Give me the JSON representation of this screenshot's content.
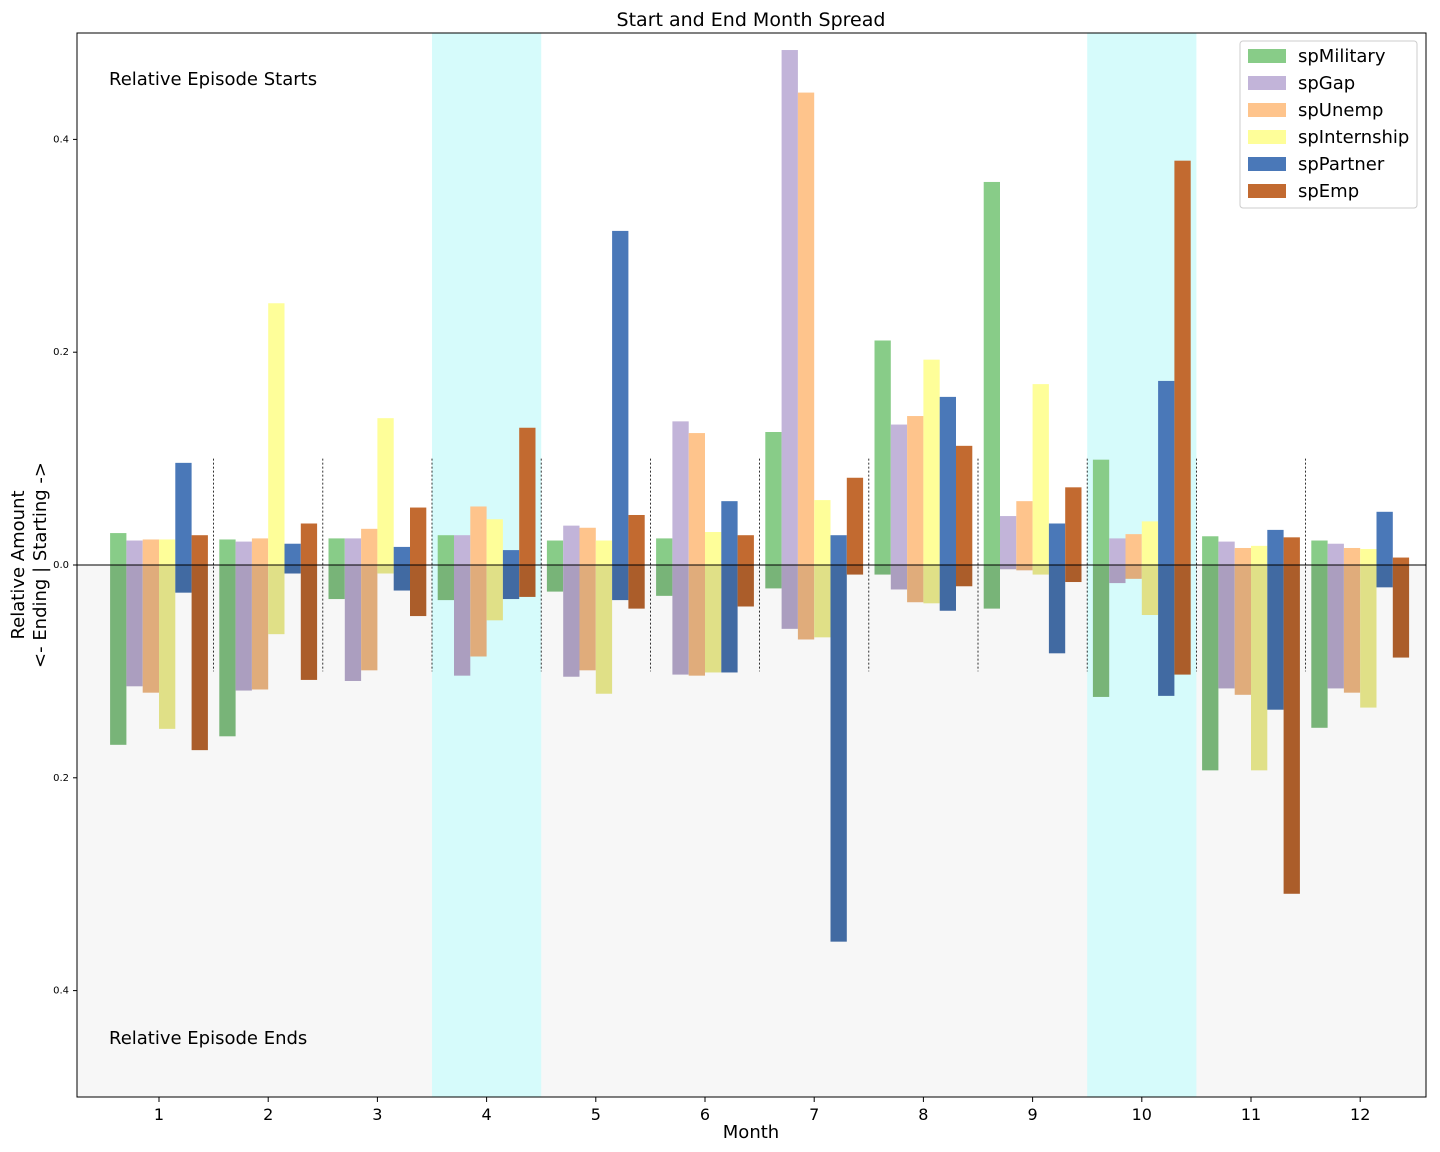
{
  "chart_data": {
    "type": "bar",
    "title": "Start and End Month Spread",
    "xlabel": "Month",
    "ylabel_line1": "Relative Amount",
    "ylabel_line2": "<- Ending | Starting ->",
    "annotation_top": "Relative Episode Starts",
    "annotation_bottom": "Relative Episode Ends",
    "categories": [
      "1",
      "2",
      "3",
      "4",
      "5",
      "6",
      "7",
      "8",
      "9",
      "10",
      "11",
      "12"
    ],
    "ylim": [
      -0.5,
      0.5
    ],
    "yticks": [
      -0.4,
      -0.2,
      0.0,
      0.2,
      0.4
    ],
    "ytick_labels": [
      "0.4",
      "0.2",
      "0.0",
      "0.2",
      "0.4"
    ],
    "highlight_months": [
      "4",
      "10"
    ],
    "highlight_color": "#d4fbfb",
    "negative_region_color": "#f7f7f7",
    "legend_position": "top-right",
    "series": [
      {
        "name": "spMilitary",
        "color": "#88cc88",
        "start": [
          0.03,
          0.024,
          0.025,
          0.028,
          0.023,
          0.025,
          0.125,
          0.211,
          0.36,
          0.099,
          0.027,
          0.023
        ],
        "end": [
          0.169,
          0.161,
          0.032,
          0.033,
          0.025,
          0.029,
          0.022,
          0.009,
          0.041,
          0.124,
          0.193,
          0.153
        ]
      },
      {
        "name": "spGap",
        "color": "#c2b4d9",
        "start": [
          0.023,
          0.022,
          0.025,
          0.028,
          0.037,
          0.135,
          0.484,
          0.132,
          0.046,
          0.025,
          0.022,
          0.02
        ],
        "end": [
          0.114,
          0.118,
          0.109,
          0.104,
          0.105,
          0.103,
          0.06,
          0.023,
          0.004,
          0.017,
          0.116,
          0.116
        ]
      },
      {
        "name": "spUnemp",
        "color": "#fec48c",
        "start": [
          0.024,
          0.025,
          0.034,
          0.055,
          0.035,
          0.124,
          0.444,
          0.14,
          0.06,
          0.029,
          0.016,
          0.016
        ],
        "end": [
          0.12,
          0.117,
          0.099,
          0.086,
          0.099,
          0.104,
          0.07,
          0.035,
          0.005,
          0.013,
          0.122,
          0.12
        ]
      },
      {
        "name": "spInternship",
        "color": "#fefe99",
        "start": [
          0.024,
          0.246,
          0.138,
          0.043,
          0.023,
          0.031,
          0.061,
          0.193,
          0.17,
          0.041,
          0.018,
          0.015
        ],
        "end": [
          0.154,
          0.065,
          0.008,
          0.052,
          0.121,
          0.101,
          0.068,
          0.036,
          0.009,
          0.047,
          0.193,
          0.134
        ]
      },
      {
        "name": "spPartner",
        "color": "#4a78b8",
        "start": [
          0.096,
          0.02,
          0.017,
          0.014,
          0.314,
          0.06,
          0.028,
          0.158,
          0.039,
          0.173,
          0.033,
          0.05
        ],
        "end": [
          0.026,
          0.008,
          0.024,
          0.032,
          0.033,
          0.101,
          0.354,
          0.043,
          0.083,
          0.123,
          0.136,
          0.021
        ]
      },
      {
        "name": "spEmp",
        "color": "#c26a30",
        "start": [
          0.028,
          0.039,
          0.054,
          0.129,
          0.047,
          0.028,
          0.082,
          0.112,
          0.073,
          0.38,
          0.026,
          0.007
        ],
        "end": [
          0.174,
          0.108,
          0.048,
          0.03,
          0.041,
          0.039,
          0.009,
          0.02,
          0.016,
          0.103,
          0.309,
          0.087
        ]
      }
    ]
  }
}
